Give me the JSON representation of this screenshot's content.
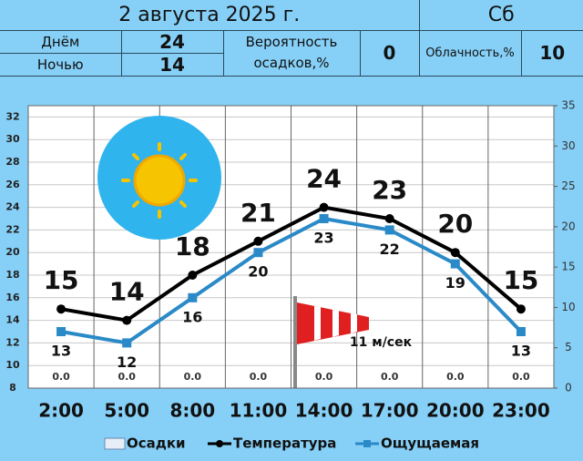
{
  "header": {
    "date": "2 августа 2025 г.",
    "weekday": "Сб",
    "day_label": "Днём",
    "day_temp": 24,
    "night_label": "Ночью",
    "night_temp": 14,
    "precip_label": "Вероятность осадков,%",
    "precip_prob": 0,
    "cloud_label": "Облачность,%",
    "cloud": 10
  },
  "chart_data": {
    "type": "line",
    "categories": [
      "2:00",
      "5:00",
      "8:00",
      "11:00",
      "14:00",
      "17:00",
      "20:00",
      "23:00"
    ],
    "series": [
      {
        "name": "Осадки",
        "type": "bar",
        "axis": "y2",
        "color": "#e8eef8",
        "values": [
          0,
          0,
          0,
          0,
          0,
          0,
          0,
          0
        ],
        "value_labels": [
          "0.0",
          "0.0",
          "0.0",
          "0.0",
          "0.0",
          "0.0",
          "0.0",
          "0.0"
        ]
      },
      {
        "name": "Температура",
        "type": "line",
        "color": "#000000",
        "values": [
          15,
          14,
          18,
          21,
          24,
          23,
          20,
          15
        ]
      },
      {
        "name": "Ощущаемая",
        "type": "line",
        "color": "#2a8ac8",
        "values": [
          13,
          12,
          16,
          20,
          23,
          22,
          19,
          13
        ]
      }
    ],
    "ylim": [
      8,
      33
    ],
    "yticks": [
      8,
      10,
      12,
      14,
      16,
      18,
      20,
      22,
      24,
      26,
      28,
      30,
      32
    ],
    "y2lim": [
      0,
      35
    ],
    "y2ticks": [
      0,
      5,
      10,
      15,
      20,
      25,
      30,
      35
    ],
    "annotation": "11 м/сек",
    "grid": true
  }
}
